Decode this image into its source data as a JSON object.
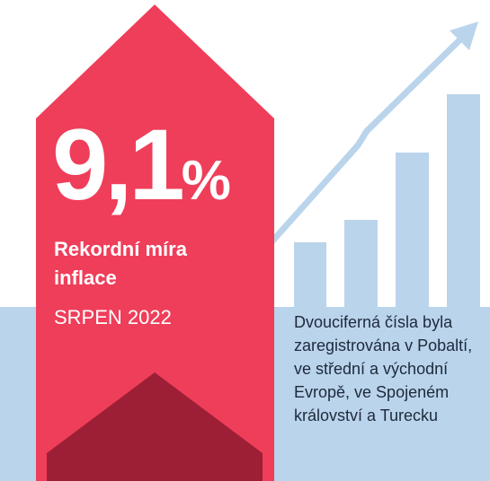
{
  "headline": {
    "value": "9,1",
    "unit": "%"
  },
  "label": "Rekordní míra inflace",
  "date": "SRPEN 2022",
  "description": "Dvouciferná čísla byla zaregistrována v Pobaltí, ve střední a východní Evropě, ve Spojeném království a Turecku"
}
